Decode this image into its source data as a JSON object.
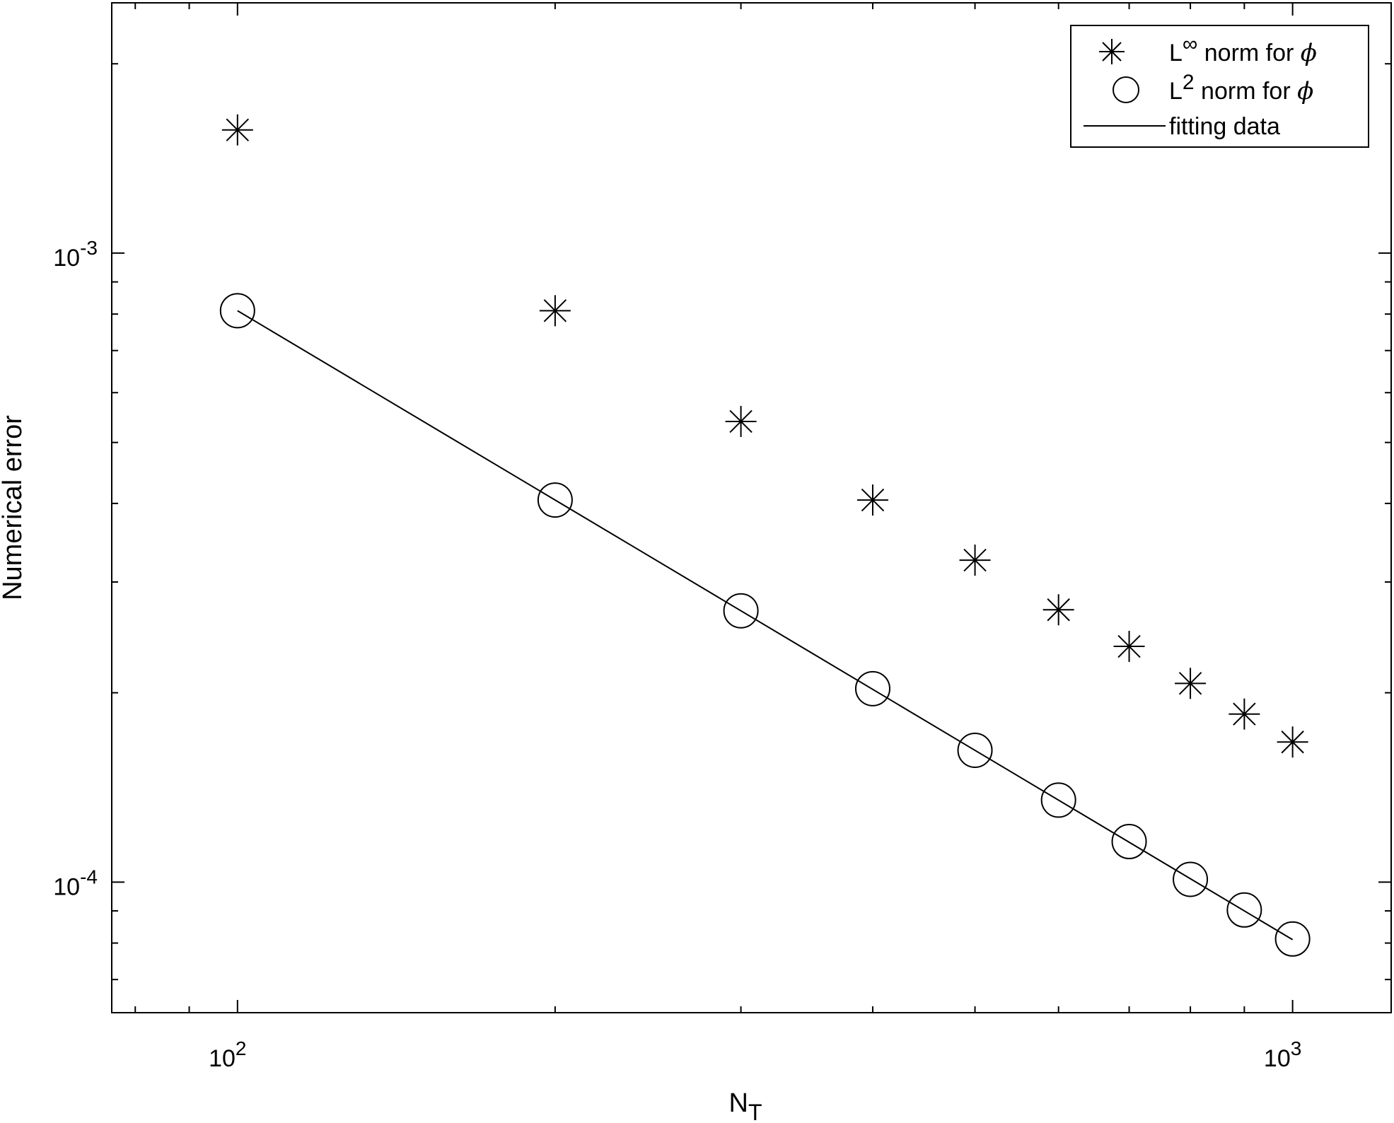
{
  "chart_data": {
    "type": "scatter",
    "xscale": "log",
    "yscale": "log",
    "xlim": [
      76,
      1240
    ],
    "ylim": [
      6.2e-05,
      0.0025
    ],
    "xlabel": {
      "base": "N",
      "sub": "T"
    },
    "ylabel": "Numerical error",
    "x_ticks": [
      {
        "value": 100,
        "base": "10",
        "exp": "2"
      },
      {
        "value": 1000,
        "base": "10",
        "exp": "3"
      }
    ],
    "y_ticks": [
      {
        "value": 0.0001,
        "base": "10",
        "exp": "-4"
      },
      {
        "value": 0.001,
        "base": "10",
        "exp": "-3"
      }
    ],
    "grid": false,
    "legend_position": "top-right",
    "x": [
      100,
      200,
      300,
      400,
      500,
      600,
      700,
      800,
      900,
      1000
    ],
    "series": [
      {
        "name": "L∞ norm for ϕ",
        "legend_parts": {
          "pre": "L",
          "sup": "∞",
          "post": " norm for ",
          "sym": "ϕ"
        },
        "marker": "asterisk",
        "values": [
          0.00157,
          0.00081,
          0.00054,
          0.000405,
          0.000325,
          0.000271,
          0.000237,
          0.000207,
          0.000185,
          0.000167
        ]
      },
      {
        "name": "L2 norm for ϕ",
        "legend_parts": {
          "pre": "L",
          "sup": "2",
          "post": " norm for ",
          "sym": "ϕ"
        },
        "marker": "circle",
        "values": [
          0.00081,
          0.000405,
          0.00027,
          0.000203,
          0.000162,
          0.000135,
          0.000116,
          0.000101,
          9.03e-05,
          8.12e-05
        ]
      },
      {
        "name": "fitting data",
        "legend_parts": {
          "pre": "fitting data",
          "sup": "",
          "post": "",
          "sym": ""
        },
        "marker": "line",
        "x_range": [
          100,
          1000
        ],
        "values": [
          0.00081,
          8.1e-05
        ]
      }
    ]
  }
}
